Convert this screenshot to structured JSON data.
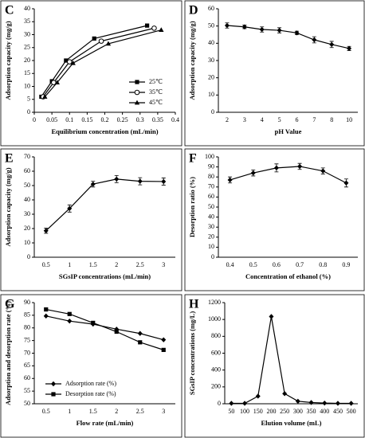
{
  "chart_data": [
    {
      "type": "line",
      "label": "C",
      "xlabel": "Equilibrium concentration (mL/min)",
      "ylabel": "Adsorption capacity (mg/g)",
      "xlim": [
        0,
        0.4
      ],
      "xticks": [
        0,
        0.05,
        0.1,
        0.15,
        0.2,
        0.25,
        0.3,
        0.35,
        0.4
      ],
      "ylim": [
        0,
        40
      ],
      "yticks": [
        0,
        5,
        10,
        15,
        20,
        25,
        30,
        35,
        40
      ],
      "legend": "lower right",
      "series": [
        {
          "name": "25℃",
          "color": "#000000",
          "marker": "square",
          "x": [
            0.02,
            0.05,
            0.09,
            0.17,
            0.32
          ],
          "values": [
            6,
            12,
            20,
            28.5,
            33.5
          ]
        },
        {
          "name": "35℃",
          "color": "#000000",
          "marker": "circle-open",
          "x": [
            0.025,
            0.055,
            0.1,
            0.19,
            0.34
          ],
          "values": [
            6,
            11.5,
            19.5,
            27.5,
            32.5
          ]
        },
        {
          "name": "45℃",
          "color": "#000000",
          "marker": "triangle",
          "x": [
            0.03,
            0.065,
            0.11,
            0.21,
            0.36
          ],
          "values": [
            6,
            11.5,
            19,
            26.5,
            31.8
          ]
        }
      ]
    },
    {
      "type": "line",
      "label": "D",
      "xlabel": "pH Value",
      "ylabel": "Adsorption capacity (mg/g)",
      "categories": [
        "2",
        "3",
        "4",
        "5",
        "6",
        "7",
        "8",
        "10"
      ],
      "ylim": [
        0,
        60
      ],
      "yticks": [
        0,
        10,
        20,
        30,
        40,
        50,
        60
      ],
      "series": [
        {
          "color": "#000000",
          "marker": "diamond",
          "values": [
            50.3,
            49.5,
            48,
            47.5,
            46,
            42,
            39.3,
            37
          ],
          "errors": [
            1.5,
            1,
            1.5,
            1.5,
            1,
            1.8,
            1.8,
            1.2
          ]
        }
      ]
    },
    {
      "type": "line",
      "label": "E",
      "xlabel": "SGsIP concentrations (mL/min)",
      "ylabel": "Adsorption capacity (mg/g)",
      "categories": [
        "0.5",
        "1",
        "1.5",
        "2",
        "2.5",
        "3"
      ],
      "ylim": [
        0,
        70
      ],
      "yticks": [
        0,
        10,
        20,
        30,
        40,
        50,
        60,
        70
      ],
      "series": [
        {
          "color": "#000000",
          "marker": "diamond",
          "values": [
            18.5,
            34,
            51,
            54.5,
            53,
            52.8
          ],
          "errors": [
            1.8,
            2.5,
            2,
            2.5,
            2.5,
            2.5
          ]
        }
      ]
    },
    {
      "type": "line",
      "label": "F",
      "xlabel": "Concentration of ethanol (%)",
      "ylabel": "Desorption ratio (%)",
      "categories": [
        "0.4",
        "0.5",
        "0.6",
        "0.7",
        "0.8",
        "0.9"
      ],
      "ylim": [
        0,
        100
      ],
      "yticks": [
        0,
        10,
        20,
        30,
        40,
        50,
        60,
        70,
        80,
        90,
        100
      ],
      "series": [
        {
          "color": "#000000",
          "marker": "diamond",
          "values": [
            77,
            84,
            89,
            90.5,
            86,
            74
          ],
          "errors": [
            3,
            3,
            4,
            3,
            3,
            4
          ]
        }
      ]
    },
    {
      "type": "line",
      "label": "G",
      "xlabel": "Flow rate (mL/min)",
      "ylabel": "Adsorption and desorption rate (%)",
      "categories": [
        "0.5",
        "1",
        "1.5",
        "2",
        "2.5",
        "3"
      ],
      "ylim": [
        50,
        90
      ],
      "yticks": [
        50,
        55,
        60,
        65,
        70,
        75,
        80,
        85,
        90
      ],
      "legend": "lower left",
      "series": [
        {
          "name": "Adsorption rate (%)",
          "color": "#000000",
          "marker": "diamond",
          "values": [
            84.7,
            82.7,
            81.5,
            79.5,
            77.8,
            75.3
          ]
        },
        {
          "name": "Desorption rate (%)",
          "color": "#000000",
          "marker": "square",
          "values": [
            87.3,
            85.5,
            82,
            78.5,
            74.3,
            71.3
          ]
        }
      ]
    },
    {
      "type": "line",
      "label": "H",
      "xlabel": "Elution volume (mL)",
      "ylabel": "SGsIP concentrations (mg/L)",
      "categories": [
        "50",
        "100",
        "150",
        "200",
        "250",
        "300",
        "350",
        "400",
        "450",
        "500"
      ],
      "ylim": [
        0,
        1200
      ],
      "yticks": [
        0,
        200,
        400,
        600,
        800,
        1000,
        1200
      ],
      "series": [
        {
          "color": "#000000",
          "marker": "diamond",
          "values": [
            5,
            5,
            90,
            1035,
            120,
            30,
            15,
            8,
            5,
            5
          ]
        }
      ]
    }
  ]
}
